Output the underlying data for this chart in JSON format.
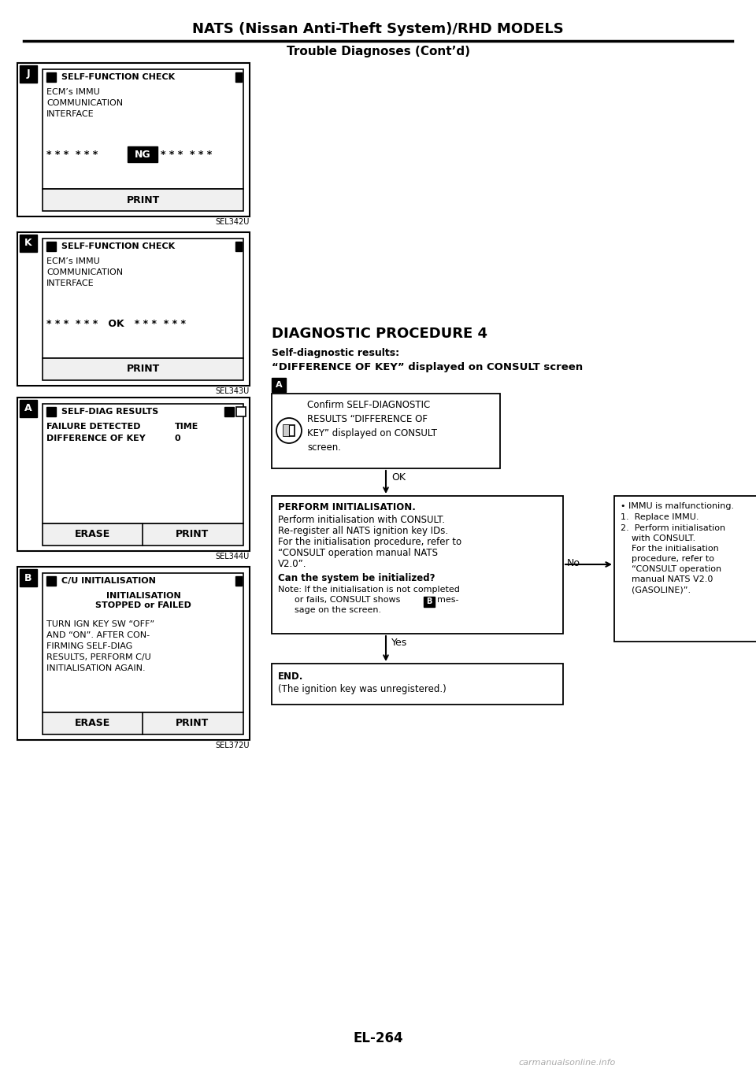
{
  "title": "NATS (Nissan Anti-Theft System)/RHD MODELS",
  "subtitle": "Trouble Diagnoses (Cont’d)",
  "page_num": "EL-264",
  "bg_color": "#ffffff",
  "panel_J_label": "J",
  "panel_J_title": "SELF-FUNCTION CHECK",
  "panel_J_body": "ECM’s IMMU\nCOMMUNICATION\nINTERFACE",
  "panel_J_ref": "SEL342U",
  "panel_K_label": "K",
  "panel_K_title": "SELF-FUNCTION CHECK",
  "panel_K_body": "ECM’s IMMU\nCOMMUNICATION\nINTERFACE",
  "panel_K_ref": "SEL343U",
  "panel_A_label": "A",
  "panel_A_title": "SELF-DIAG RESULTS",
  "panel_A_line1": "FAILURE DETECTED",
  "panel_A_line1r": "TIME",
  "panel_A_line2": "DIFFERENCE OF KEY",
  "panel_A_line2r": "0",
  "panel_A_ref": "SEL344U",
  "panel_B_label": "B",
  "panel_B_title": "C/U INITIALISATION",
  "panel_B_sub": "INITIALISATION\nSTOPPED or FAILED",
  "panel_B_body": "TURN IGN KEY SW “OFF”\nAND “ON”. AFTER CON-\nFIRMING SELF-DIAG\nRESULTS, PERFORM C/U\nINITIALISATION AGAIN.",
  "panel_B_ref": "SEL372U",
  "diag_title": "DIAGNOSTIC PROCEDURE 4",
  "diag_sub1": "Self-diagnostic results:",
  "diag_sub2": "“DIFFERENCE OF KEY” displayed on CONSULT screen",
  "step_A_text": "Confirm SELF-DIAGNOSTIC\nRESULTS “DIFFERENCE OF\nKEY” displayed on CONSULT\nscreen.",
  "ok_label": "OK",
  "no_label": "No",
  "yes_label": "Yes",
  "perf_line1": "PERFORM INITIALISATION.",
  "perf_line2": "Perform initialisation with CONSULT.",
  "perf_line3": "Re-register all NATS ignition key IDs.",
  "perf_line4": "For the initialisation procedure, refer to",
  "perf_line5": "“CONSULT operation manual NATS",
  "perf_line6": "V2.0”.",
  "perf_bold": "Can the system be initialized?",
  "perf_note1": "Note: If the initialisation is not completed",
  "perf_note2": "      or fails, CONSULT shows",
  "perf_note2b": "mes-",
  "perf_note3": "      sage on the screen.",
  "no_box_line1": "• IMMU is malfunctioning.",
  "no_box_line2": "1.  Replace IMMU.",
  "no_box_line3": "2.  Perform initialisation",
  "no_box_line4": "    with CONSULT.",
  "no_box_line5": "    For the initialisation",
  "no_box_line6": "    procedure, refer to",
  "no_box_line7": "    “CONSULT operation",
  "no_box_line8": "    manual NATS V2.0",
  "no_box_line9": "    (GASOLINE)”.",
  "end_title": "END.",
  "end_body": "(The ignition key was unregistered.)",
  "watermark": "carmanualsonline.info"
}
